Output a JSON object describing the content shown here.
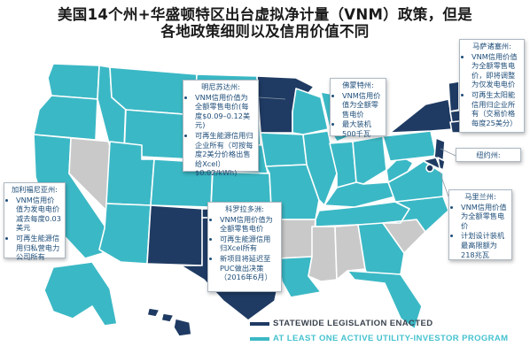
{
  "title": {
    "line1": "美国14个州+华盛顿特区出台虚拟净计量（VNM）政策，但是",
    "line2": "各地政策细则以及信用价值不同"
  },
  "colors": {
    "legislation": "#1f3b63",
    "utility": "#3bb8c5",
    "none": "#c9c9c9",
    "callout_text": "#1f4e79"
  },
  "callouts": {
    "minnesota": {
      "heading": "明尼苏达州:",
      "items": [
        "VNM信用价值为全额零售电价(每度$0.09–0.12美元)",
        "可再生能源信用归企业所有（可按每度2美分价格出售给Xcel）$0.02/kWh)"
      ]
    },
    "wisconsin": {
      "heading": "佛蒙特州:",
      "items": [
        "VNM信用价值为全额零售电价",
        "最大装机 500千瓦"
      ]
    },
    "massachusetts": {
      "heading": "马萨诸塞州:",
      "items": [
        "VNM信用价值为全额零售电价，即将调整为仅发电电价",
        "可再生太阳能信用归企业所有（交易价格每度25美分）"
      ]
    },
    "newyork": {
      "heading": "纽约州:"
    },
    "maryland": {
      "heading": "马里兰州:",
      "items": [
        "VNM信用价值为全额零售电价",
        "计划设计装机最高限额为218兆瓦"
      ]
    },
    "colorado": {
      "heading": "科罗拉多洲:",
      "items": [
        "VNM信用价值为全额零售电价",
        "可再生能源信用归Xcel所有",
        "新项目将延迟至PUC做出决策（2016年6月）"
      ]
    },
    "california": {
      "heading": "加利福尼亚州:",
      "items": [
        "VNM信用价值为发电电价减去每度0.03美元",
        "可再生能源信用归私营电力公司所有"
      ]
    }
  },
  "legend": {
    "line1": "STATEWIDE LEGISLATION ENACTED",
    "line2": "AT LEAST ONE ACTIVE UTILITY-INVESTOR PROGRAM"
  }
}
